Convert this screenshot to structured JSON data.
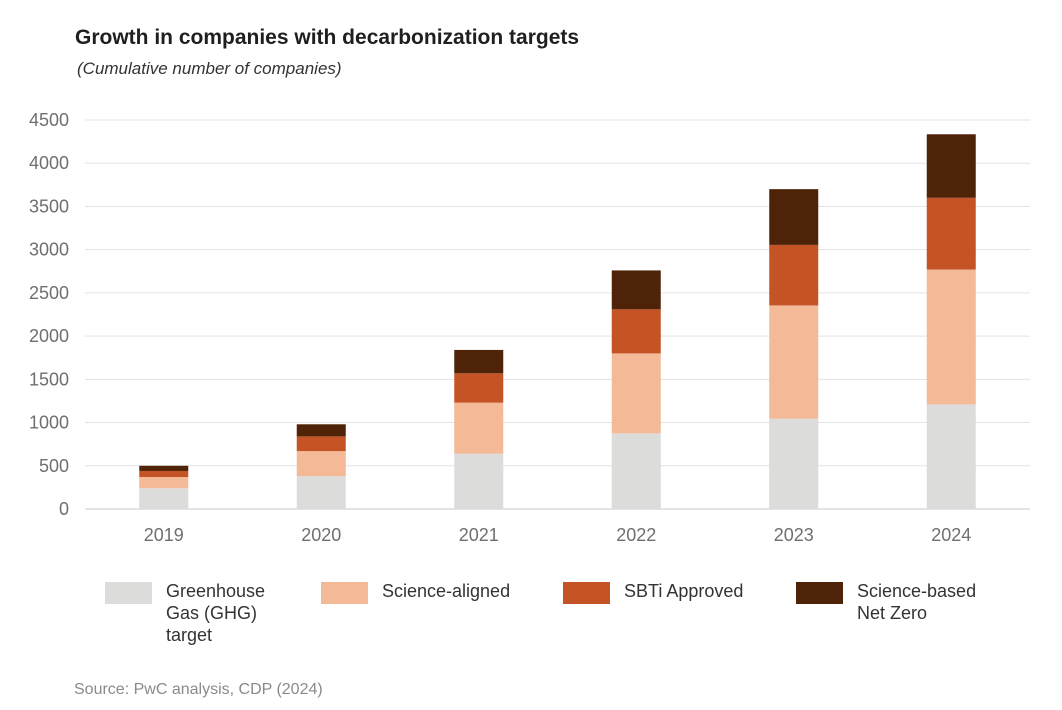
{
  "chart_data": {
    "type": "bar",
    "stacked": true,
    "title": "Growth in companies with decarbonization targets",
    "subtitle": "(Cumulative number of companies)",
    "xlabel": "",
    "ylabel": "",
    "ylim": [
      0,
      4500
    ],
    "yticks": [
      0,
      500,
      1000,
      1500,
      2000,
      2500,
      3000,
      3500,
      4000,
      4500
    ],
    "grid": true,
    "categories": [
      "2019",
      "2020",
      "2021",
      "2022",
      "2023",
      "2024"
    ],
    "series": [
      {
        "name": "Greenhouse\nGas (GHG)\ntarget",
        "color": "#dcdcdb",
        "values": [
          240,
          380,
          640,
          875,
          1045,
          1210
        ]
      },
      {
        "name": "Science-aligned",
        "color": "#f4b996",
        "values": [
          130,
          290,
          590,
          925,
          1310,
          1560
        ]
      },
      {
        "name": "SBTi Approved",
        "color": "#c45325",
        "values": [
          70,
          170,
          340,
          510,
          700,
          830
        ]
      },
      {
        "name": "Science-based\nNet Zero",
        "color": "#4f2308",
        "values": [
          60,
          140,
          270,
          450,
          645,
          735
        ]
      }
    ],
    "legend_position": "bottom",
    "source": "Source: PwC analysis, CDP (2024)"
  }
}
